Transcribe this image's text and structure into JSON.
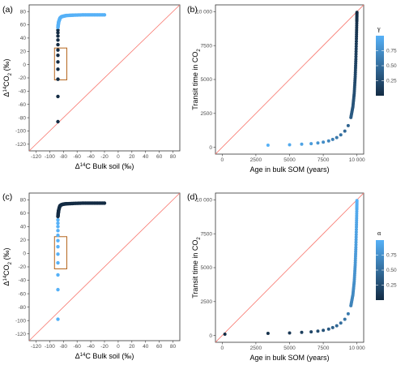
{
  "figure": {
    "panel_labels": [
      "(a)",
      "(b)",
      "(c)",
      "(d)"
    ],
    "legend_b": {
      "title": "γ",
      "ticks": [
        "0.75",
        "0.50",
        "0.25"
      ],
      "tick_values": [
        0.75,
        0.5,
        0.25
      ]
    },
    "legend_d": {
      "title": "α",
      "ticks": [
        "0.75",
        "0.50",
        "0.25"
      ],
      "tick_values": [
        0.75,
        0.5,
        0.25
      ]
    },
    "colors": {
      "low": "#132b43",
      "high": "#56b1f7",
      "line": "#f8766d",
      "box": "#b5651d",
      "frame": "#333333"
    }
  },
  "chart_data": [
    {
      "id": "a",
      "type": "scatter",
      "xlabel": "Δ14C Bulk soil (‰)",
      "ylabel": "Δ14CO2 (‰)",
      "xlim": [
        -130,
        90
      ],
      "ylim": [
        -130,
        90
      ],
      "xticks": [
        -120,
        -100,
        -80,
        -60,
        -40,
        -20,
        0,
        20,
        40,
        60,
        80
      ],
      "yticks": [
        -120,
        -100,
        -80,
        -60,
        -40,
        -20,
        0,
        20,
        40,
        60,
        80
      ],
      "reference_line": "1:1",
      "highlight_box": {
        "x": [
          -93,
          -75
        ],
        "y": [
          -23,
          25
        ]
      },
      "series": [
        {
          "points": [
            [
              -88,
              -86
            ],
            [
              -88,
              -48
            ],
            [
              -88,
              -22
            ],
            [
              -88,
              -7
            ],
            [
              -88,
              4
            ],
            [
              -88,
              14
            ],
            [
              -88,
              22
            ],
            [
              -88,
              30
            ],
            [
              -88,
              37
            ],
            [
              -88,
              43
            ],
            [
              -88,
              48
            ],
            [
              -88,
              52
            ]
          ],
          "color": "dark"
        },
        {
          "points": [
            [
              -88,
              56
            ],
            [
              -87.5,
              60
            ],
            [
              -87,
              64
            ],
            [
              -86,
              67
            ],
            [
              -85,
              70
            ],
            [
              -83,
              72
            ],
            [
              -80,
              73
            ],
            [
              -75,
              74
            ],
            [
              -65,
              74.5
            ],
            [
              -50,
              75
            ],
            [
              -35,
              75
            ],
            [
              -20,
              75
            ]
          ],
          "color": "light"
        }
      ]
    },
    {
      "id": "b",
      "type": "scatter",
      "xlabel": "Age in bulk SOM (years)",
      "ylabel": "Transit time in CO2",
      "xlim": [
        -500,
        10500
      ],
      "ylim": [
        -500,
        10500
      ],
      "xticks": [
        0,
        2500,
        5000,
        7500,
        10000
      ],
      "xticklabels": [
        "0",
        "2500",
        "5000",
        "7500",
        "10 000"
      ],
      "yticks": [
        0,
        2500,
        5000,
        7500,
        10000
      ],
      "yticklabels": [
        "0",
        "2500",
        "5000",
        "7500",
        "10 000"
      ],
      "reference_line": "1:1",
      "points": [
        [
          3400,
          160
        ],
        [
          5000,
          190
        ],
        [
          5900,
          230
        ],
        [
          6600,
          270
        ],
        [
          7100,
          320
        ],
        [
          7500,
          380
        ],
        [
          7900,
          470
        ],
        [
          8200,
          580
        ],
        [
          8500,
          720
        ],
        [
          8800,
          920
        ],
        [
          9100,
          1200
        ],
        [
          9350,
          1600
        ],
        [
          9550,
          2200
        ],
        [
          9700,
          3000
        ],
        [
          9800,
          4000
        ],
        [
          9870,
          5200
        ],
        [
          9920,
          6500
        ],
        [
          9960,
          8000
        ],
        [
          9990,
          9300
        ],
        [
          10000,
          9950
        ]
      ],
      "color_variable": "γ",
      "color_range": [
        0,
        1
      ]
    },
    {
      "id": "c",
      "type": "scatter",
      "xlabel": "Δ14C Bulk soil (‰)",
      "ylabel": "Δ14CO2 (‰)",
      "xlim": [
        -130,
        90
      ],
      "ylim": [
        -130,
        90
      ],
      "xticks": [
        -120,
        -100,
        -80,
        -60,
        -40,
        -20,
        0,
        20,
        40,
        60,
        80
      ],
      "yticks": [
        -120,
        -100,
        -80,
        -60,
        -40,
        -20,
        0,
        20,
        40,
        60,
        80
      ],
      "reference_line": "1:1",
      "highlight_box": {
        "x": [
          -93,
          -75
        ],
        "y": [
          -23,
          25
        ]
      },
      "series": [
        {
          "points": [
            [
              -88,
              -98
            ],
            [
              -88,
              -54
            ],
            [
              -88,
              -32
            ],
            [
              -88,
              -14
            ],
            [
              -88,
              -1
            ],
            [
              -88,
              10
            ],
            [
              -88,
              19
            ],
            [
              -88,
              27
            ],
            [
              -88,
              34
            ],
            [
              -88,
              40
            ],
            [
              -88,
              45
            ],
            [
              -88,
              50
            ]
          ],
          "color": "light"
        },
        {
          "points": [
            [
              -88,
              55
            ],
            [
              -87.5,
              60
            ],
            [
              -87,
              64
            ],
            [
              -86,
              68
            ],
            [
              -85,
              71
            ],
            [
              -83,
              72.5
            ],
            [
              -80,
              73.5
            ],
            [
              -75,
              74
            ],
            [
              -65,
              74.5
            ],
            [
              -50,
              75
            ],
            [
              -35,
              75
            ],
            [
              -20,
              75
            ]
          ],
          "color": "dark"
        }
      ]
    },
    {
      "id": "d",
      "type": "scatter",
      "xlabel": "Age in bulk SOM (years)",
      "ylabel": "Transit time in CO2",
      "xlim": [
        -500,
        10500
      ],
      "ylim": [
        -500,
        10500
      ],
      "xticks": [
        0,
        2500,
        5000,
        7500,
        10000
      ],
      "xticklabels": [
        "0",
        "2500",
        "5000",
        "7500",
        "10 000"
      ],
      "yticks": [
        0,
        2500,
        5000,
        7500,
        10000
      ],
      "yticklabels": [
        "0",
        "2500",
        "5000",
        "7500",
        "10 000"
      ],
      "reference_line": "1:1",
      "points": [
        [
          200,
          100
        ],
        [
          3400,
          160
        ],
        [
          5000,
          190
        ],
        [
          5900,
          230
        ],
        [
          6600,
          270
        ],
        [
          7100,
          320
        ],
        [
          7500,
          380
        ],
        [
          7900,
          470
        ],
        [
          8200,
          580
        ],
        [
          8500,
          720
        ],
        [
          8800,
          920
        ],
        [
          9100,
          1200
        ],
        [
          9350,
          1600
        ],
        [
          9550,
          2200
        ],
        [
          9700,
          3000
        ],
        [
          9800,
          4000
        ],
        [
          9870,
          5200
        ],
        [
          9920,
          6500
        ],
        [
          9960,
          8000
        ],
        [
          9990,
          9300
        ],
        [
          10000,
          9950
        ]
      ],
      "color_variable": "α",
      "color_range": [
        0,
        1
      ]
    }
  ]
}
